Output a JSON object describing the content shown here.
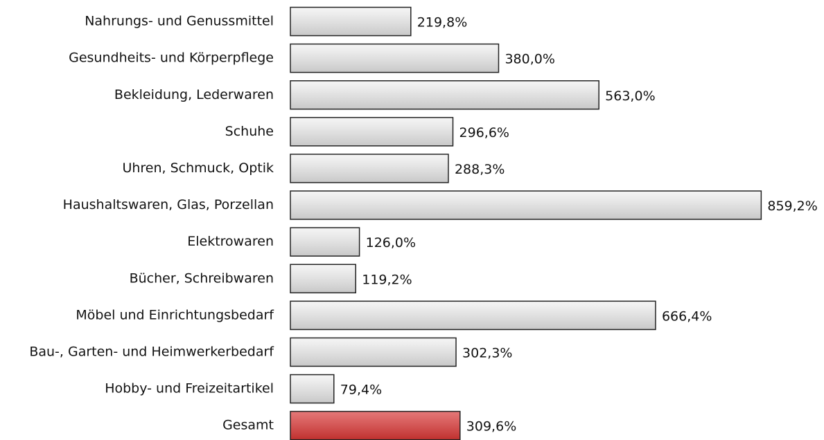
{
  "chart_data": {
    "type": "hbar",
    "categories": [
      "Nahrungs- und Genussmittel",
      "Gesundheits- und Körperpflege",
      "Bekleidung, Lederwaren",
      "Schuhe",
      "Uhren, Schmuck, Optik",
      "Haushaltswaren, Glas, Porzellan",
      "Elektrowaren",
      "Bücher, Schreibwaren",
      "Möbel und Einrichtungsbedarf",
      "Bau-, Garten- und Heimwerkerbedarf",
      "Hobby- und Freizeitartikel",
      "Gesamt"
    ],
    "values": [
      219.8,
      380.0,
      563.0,
      296.6,
      288.3,
      859.2,
      126.0,
      119.2,
      666.4,
      302.3,
      79.4,
      309.6
    ],
    "value_labels": [
      "219,8%",
      "380,0%",
      "563,0%",
      "296,6%",
      "288,3%",
      "859,2%",
      "126,0%",
      "119,2%",
      "666,4%",
      "302,3%",
      "79,4%",
      "309,6%"
    ],
    "colors": [
      "#c8c8c8",
      "#c8c8c8",
      "#c8c8c8",
      "#c8c8c8",
      "#c8c8c8",
      "#c8c8c8",
      "#c8c8c8",
      "#c8c8c8",
      "#c8c8c8",
      "#c8c8c8",
      "#c8c8c8",
      "#c0302e"
    ],
    "xlim": [
      0,
      860
    ]
  }
}
